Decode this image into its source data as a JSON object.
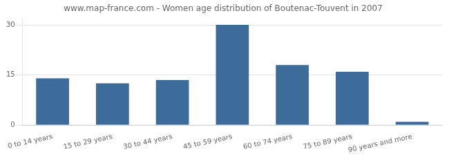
{
  "chart_data": {
    "type": "bar",
    "title": "www.map-france.com - Women age distribution of Boutenac-Touvent in 2007",
    "categories": [
      "0 to 14 years",
      "15 to 29 years",
      "30 to 44 years",
      "45 to 59 years",
      "60 to 74 years",
      "75 to 89 years",
      "90 years and more"
    ],
    "values": [
      14,
      12.5,
      13.5,
      30,
      18,
      16,
      1
    ],
    "color": "#3d6b9a",
    "ylim": [
      0,
      32
    ],
    "yticks": [
      0,
      15,
      30
    ],
    "grid": true
  }
}
